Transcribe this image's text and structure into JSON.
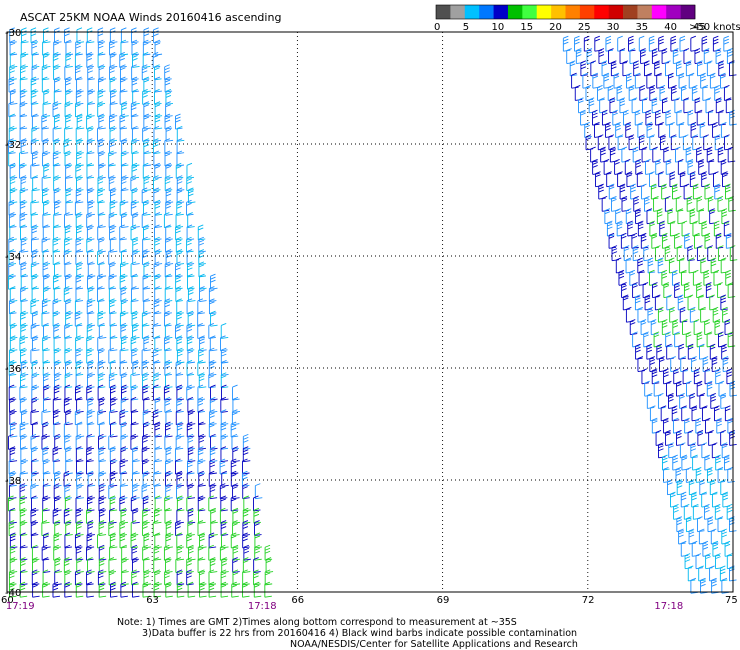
{
  "title": "ASCAT 25KM NOAA Winds 20160416 ascending",
  "legend": {
    "units_label": ">50 knots",
    "ticks": [
      "0",
      "5",
      "10",
      "15",
      "20",
      "25",
      "30",
      "35",
      "40",
      "45"
    ],
    "colors": [
      "#505050",
      "#a0a0a0",
      "#00c0ff",
      "#0078ff",
      "#0000c8",
      "#00c000",
      "#40ff40",
      "#ffff00",
      "#ffc000",
      "#ff8000",
      "#ff4000",
      "#ff0000",
      "#d00000",
      "#a04020",
      "#c08060",
      "#ff00ff",
      "#a000c0",
      "#600080"
    ]
  },
  "chart_data": {
    "type": "map",
    "lon_range": [
      60,
      75
    ],
    "lat_range": [
      -30,
      -40
    ],
    "lon_ticks": [
      "60",
      "63",
      "66",
      "69",
      "72",
      "75"
    ],
    "lat_ticks": [
      "-30",
      "-32",
      "-34",
      "-36",
      "-38",
      "-40"
    ],
    "grid": true,
    "pass_times": [
      {
        "label": "17:19",
        "lon": 60.1,
        "color": "#800080"
      },
      {
        "label": "17:18",
        "lon": 65.1,
        "color": "#800080"
      },
      {
        "label": "17:18",
        "lon": 73.5,
        "color": "#800080"
      }
    ],
    "swaths": [
      {
        "name": "west",
        "lon_bounds_at_lat": [
          {
            "lat": -30,
            "lon_left": 60.0,
            "lon_right": 63.2
          },
          {
            "lat": -40,
            "lon_left": 60.0,
            "lon_right": 65.6
          }
        ],
        "dominant_speed_knots": "10-15, 15-20 in south"
      },
      {
        "name": "east",
        "lon_bounds_at_lat": [
          {
            "lat": -30,
            "lon_left": 71.4,
            "lon_right": 75.0
          },
          {
            "lat": -40,
            "lon_left": 74.1,
            "lon_right": 75.0
          }
        ],
        "dominant_speed_knots": "5-20"
      }
    ]
  },
  "notes": [
    "Note: 1) Times are GMT 2)Times along bottom correspond to measurement at ~35S",
    "3)Data buffer is 22 hrs from 20160416 4) Black wind barbs indicate possible contamination",
    "NOAA/NESDIS/Center for Satellite Applications and Research"
  ]
}
